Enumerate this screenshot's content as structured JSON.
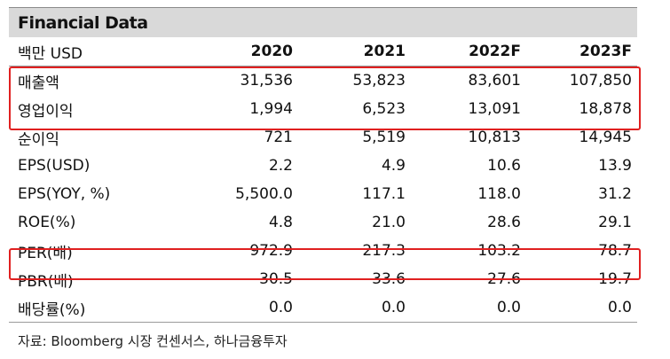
{
  "title": "Financial Data",
  "header": {
    "unit": "백만 USD",
    "years": [
      "2020",
      "2021",
      "2022F",
      "2023F"
    ]
  },
  "rows": [
    {
      "label": "매출액",
      "values": [
        "31,536",
        "53,823",
        "83,601",
        "107,850"
      ]
    },
    {
      "label": "영업이익",
      "values": [
        "1,994",
        "6,523",
        "13,091",
        "18,878"
      ]
    },
    {
      "label": "순이익",
      "values": [
        "721",
        "5,519",
        "10,813",
        "14,945"
      ]
    },
    {
      "label": "EPS(USD)",
      "values": [
        "2.2",
        "4.9",
        "10.6",
        "13.9"
      ]
    },
    {
      "label": "EPS(YOY, %)",
      "values": [
        "5,500.0",
        "117.1",
        "118.0",
        "31.2"
      ]
    },
    {
      "label": "ROE(%)",
      "values": [
        "4.8",
        "21.0",
        "28.6",
        "29.1"
      ]
    },
    {
      "label": "PER(배)",
      "values": [
        "972.9",
        "217.3",
        "103.2",
        "78.7"
      ]
    },
    {
      "label": "PBR(배)",
      "values": [
        "30.5",
        "33.6",
        "27.6",
        "19.7"
      ]
    },
    {
      "label": "배당률(%)",
      "values": [
        "0.0",
        "0.0",
        "0.0",
        "0.0"
      ]
    }
  ],
  "source": "자료: Bloomberg 시장 컨센서스, 하나금융투자",
  "highlight_color": "#e02020"
}
